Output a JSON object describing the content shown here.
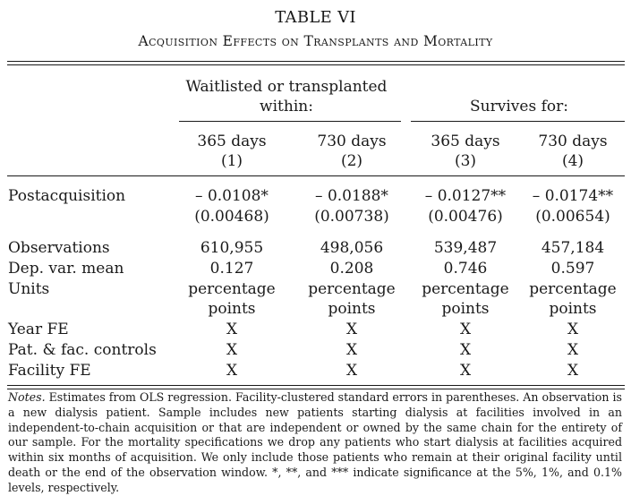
{
  "table": {
    "number": "TABLE VI",
    "title": "Acquisition Effects on Transplants and Mortality",
    "groups": [
      {
        "label_line1": "Waitlisted or transplanted",
        "label_line2": "within:"
      },
      {
        "label": "Survives for:"
      }
    ],
    "columns": [
      {
        "horizon": "365 days",
        "index": "(1)"
      },
      {
        "horizon": "730 days",
        "index": "(2)"
      },
      {
        "horizon": "365 days",
        "index": "(3)"
      },
      {
        "horizon": "730 days",
        "index": "(4)"
      }
    ],
    "rows": {
      "postacquisition": {
        "label": "Postacquisition",
        "coef": [
          "– 0.0108*",
          "– 0.0188*",
          "– 0.0127**",
          "– 0.0174**"
        ],
        "se": [
          "(0.00468)",
          "(0.00738)",
          "(0.00476)",
          "(0.00654)"
        ]
      },
      "observations": {
        "label": "Observations",
        "values": [
          "610,955",
          "498,056",
          "539,487",
          "457,184"
        ]
      },
      "dep_mean": {
        "label": "Dep. var. mean",
        "values": [
          "0.127",
          "0.208",
          "0.746",
          "0.597"
        ]
      },
      "units": {
        "label": "Units",
        "line1": "percentage",
        "line2": "points"
      },
      "year_fe": {
        "label": "Year FE",
        "mark": "X"
      },
      "controls": {
        "label": "Pat. & fac. controls",
        "mark": "X"
      },
      "facility_fe": {
        "label": "Facility FE",
        "mark": "X"
      }
    }
  },
  "notes": {
    "lead": "Notes.",
    "text": "Estimates from OLS regression. Facility-clustered standard errors in parentheses. An observation is a new dialysis patient. Sample includes new patients starting dialysis at facilities involved in an independent-to-chain acquisition or that are independent or owned by the same chain for the entirety of our sample. For the mortality specifications we drop any patients who start dialysis at facilities acquired within six months of acquisition. We only include those patients who remain at their original facility until death or the end of the observation window. *, **, and *** indicate significance at the 5%, 1%, and 0.1% levels, respectively."
  }
}
